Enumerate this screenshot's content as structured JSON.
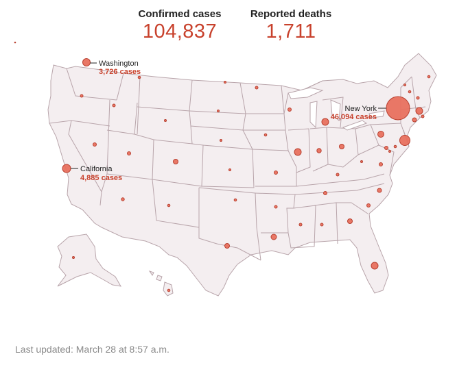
{
  "stats": {
    "cases_label": "Confirmed cases",
    "cases_value": "104,837",
    "deaths_label": "Reported deaths",
    "deaths_value": "1,711"
  },
  "callouts": {
    "washington": {
      "name": "Washington",
      "cases": "3,726 cases"
    },
    "new_york": {
      "name": "New York",
      "cases": "46,094 cases"
    },
    "california": {
      "name": "California",
      "cases": "4,885 cases"
    }
  },
  "footer": {
    "updated": "Last updated: March 28 at 8:57 a.m."
  },
  "colors": {
    "bubble": "#e8705e",
    "bubble_stroke": "#b84030",
    "state_fill": "#f4eef0",
    "state_stroke": "#b8a4aa",
    "accent_text": "#c8412c"
  }
}
